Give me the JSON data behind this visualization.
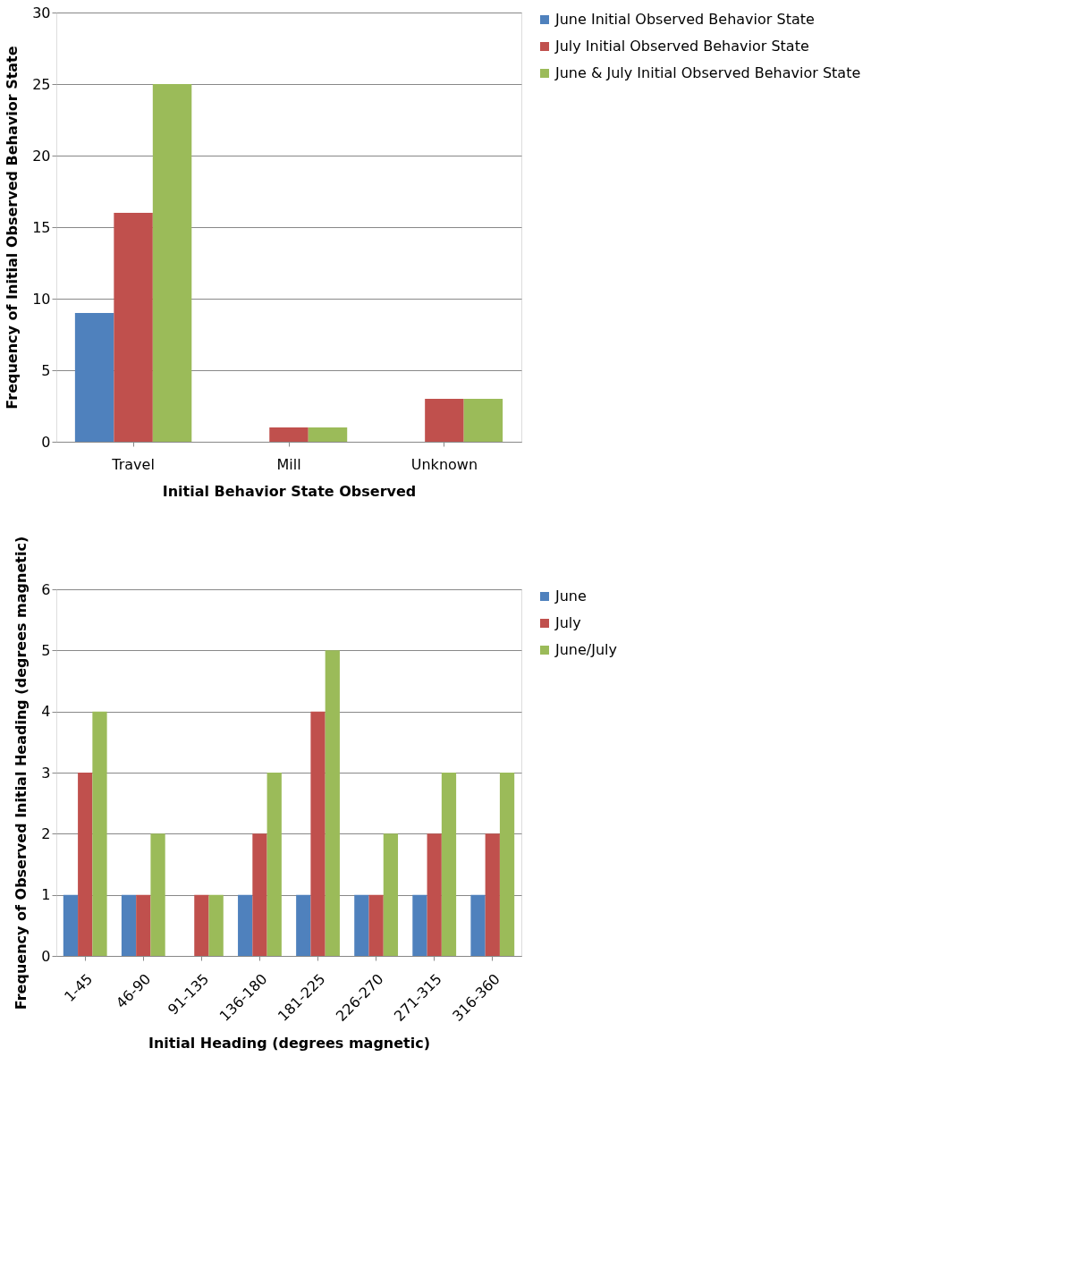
{
  "chart_data": [
    {
      "type": "bar",
      "xlabel": "Initial Behavior State Observed",
      "ylabel": "Frequency of Initial Observed Behavior State",
      "categories": [
        "Travel",
        "Mill",
        "Unknown"
      ],
      "ylim": [
        0,
        30
      ],
      "yticks": [
        0,
        5,
        10,
        15,
        20,
        25,
        30
      ],
      "grid": "y",
      "legend": "right",
      "series": [
        {
          "name": "June Initial Observed Behavior State",
          "color": "#4f81bd",
          "values": [
            9,
            0,
            0
          ]
        },
        {
          "name": "July Initial Observed Behavior State",
          "color": "#c0504d",
          "values": [
            16,
            1,
            3
          ]
        },
        {
          "name": "June & July Initial Observed Behavior State",
          "color": "#9bbb59",
          "values": [
            25,
            1,
            3
          ]
        }
      ]
    },
    {
      "type": "bar",
      "xlabel": "Initial Heading (degrees magnetic)",
      "ylabel": "Frequency of Observed Initial Heading (degrees magnetic)",
      "categories": [
        "1-45",
        "46-90",
        "91-135",
        "136-180",
        "181-225",
        "226-270",
        "271-315",
        "316-360"
      ],
      "ylim": [
        0,
        6
      ],
      "yticks": [
        0,
        1,
        2,
        3,
        4,
        5,
        6
      ],
      "grid": "y",
      "legend": "right",
      "series": [
        {
          "name": "June",
          "color": "#4f81bd",
          "values": [
            1,
            1,
            0,
            1,
            1,
            1,
            1,
            1
          ]
        },
        {
          "name": "July",
          "color": "#c0504d",
          "values": [
            3,
            1,
            1,
            2,
            4,
            1,
            2,
            2
          ]
        },
        {
          "name": "June/July",
          "color": "#9bbb59",
          "values": [
            4,
            2,
            1,
            3,
            5,
            2,
            3,
            3
          ]
        }
      ]
    }
  ]
}
